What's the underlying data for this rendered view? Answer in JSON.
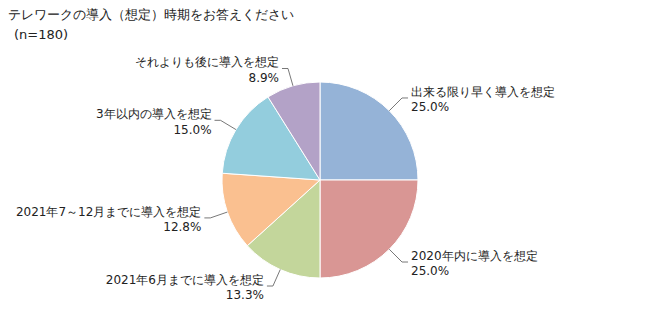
{
  "chart_data": {
    "type": "pie",
    "title": "テレワークの導入（想定）時期をお答えください",
    "subtitle": "(n=180)",
    "categories": [
      "出来る限り早く導入を想定",
      "2020年内に導入を想定",
      "2021年6月までに導入を想定",
      "2021年7～12月までに導入を想定",
      "3年以内の導入を想定",
      "それよりも後に導入を想定"
    ],
    "values": [
      25,
      25,
      13.3,
      12.8,
      15,
      8.9
    ],
    "value_labels": [
      "25.0%",
      "25.0%",
      "13.3%",
      "12.8%",
      "15.0%",
      "8.9%"
    ],
    "colors": [
      "#95b3d7",
      "#d99694",
      "#c3d69b",
      "#fac090",
      "#93cddd",
      "#b3a2c7"
    ],
    "data_labels": true
  }
}
